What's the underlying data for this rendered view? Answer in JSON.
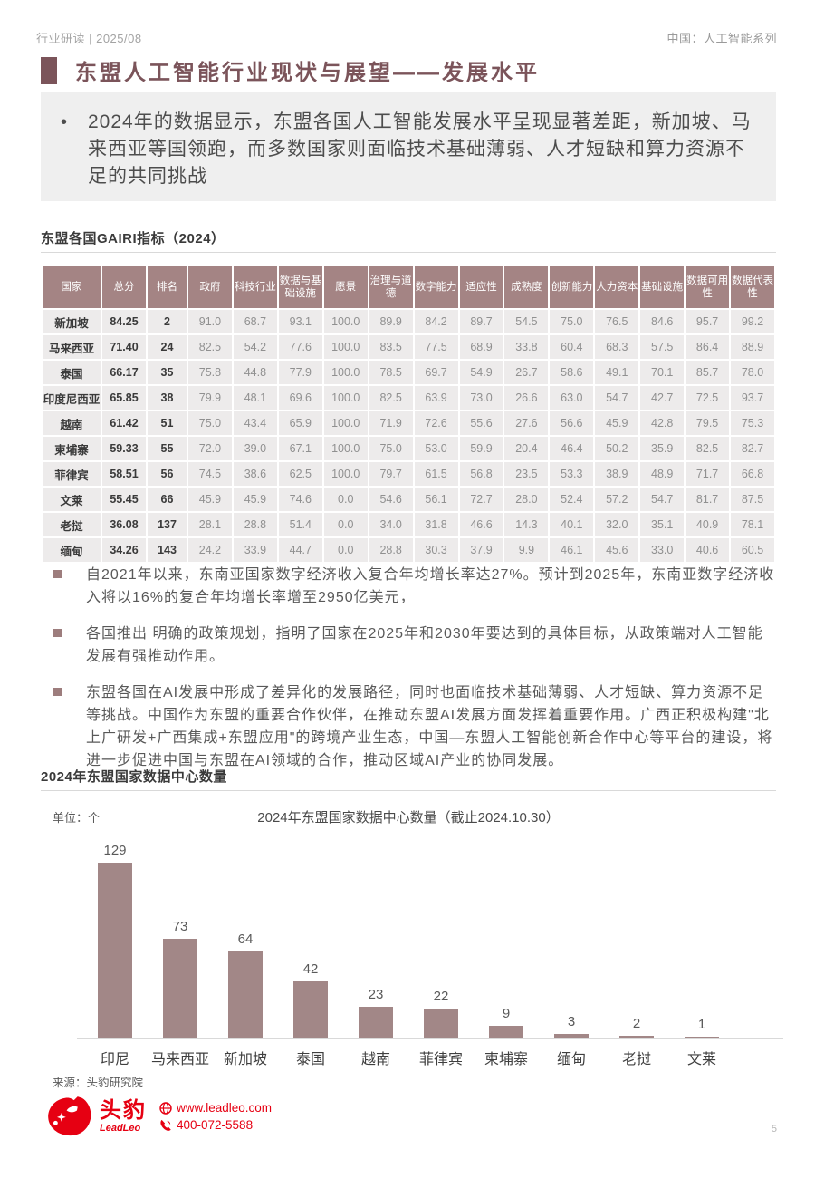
{
  "header": {
    "left": "行业研读 | 2025/08",
    "right": "中国：人工智能系列"
  },
  "title": "东盟人工智能行业现状与展望——发展水平",
  "intro": {
    "bullet": "•",
    "text": "2024年的数据显示，东盟各国人工智能发展水平呈现显著差距，新加坡、马来西亚等国领跑，而多数国家则面临技术基础薄弱、人才短缺和算力资源不足的共同挑战"
  },
  "table_section": {
    "title": "东盟各国GAIRI指标（2024）",
    "columns": [
      "国家",
      "总分",
      "排名",
      "政府",
      "科技行业",
      "数据与基础设施",
      "愿景",
      "治理与道德",
      "数字能力",
      "适应性",
      "成熟度",
      "创新能力",
      "人力资本",
      "基础设施",
      "数据可用性",
      "数据代表性"
    ],
    "rows": [
      [
        "新加坡",
        "84.25",
        "2",
        "91.0",
        "68.7",
        "93.1",
        "100.0",
        "89.9",
        "84.2",
        "89.7",
        "54.5",
        "75.0",
        "76.5",
        "84.6",
        "95.7",
        "99.2"
      ],
      [
        "马来西亚",
        "71.40",
        "24",
        "82.5",
        "54.2",
        "77.6",
        "100.0",
        "83.5",
        "77.5",
        "68.9",
        "33.8",
        "60.4",
        "68.3",
        "57.5",
        "86.4",
        "88.9"
      ],
      [
        "泰国",
        "66.17",
        "35",
        "75.8",
        "44.8",
        "77.9",
        "100.0",
        "78.5",
        "69.7",
        "54.9",
        "26.7",
        "58.6",
        "49.1",
        "70.1",
        "85.7",
        "78.0"
      ],
      [
        "印度尼西亚",
        "65.85",
        "38",
        "79.9",
        "48.1",
        "69.6",
        "100.0",
        "82.5",
        "63.9",
        "73.0",
        "26.6",
        "63.0",
        "54.7",
        "42.7",
        "72.5",
        "93.7"
      ],
      [
        "越南",
        "61.42",
        "51",
        "75.0",
        "43.4",
        "65.9",
        "100.0",
        "71.9",
        "72.6",
        "55.6",
        "27.6",
        "56.6",
        "45.9",
        "42.8",
        "79.5",
        "75.3"
      ],
      [
        "柬埔寨",
        "59.33",
        "55",
        "72.0",
        "39.0",
        "67.1",
        "100.0",
        "75.0",
        "53.0",
        "59.9",
        "20.4",
        "46.4",
        "50.2",
        "35.9",
        "82.5",
        "82.7"
      ],
      [
        "菲律宾",
        "58.51",
        "56",
        "74.5",
        "38.6",
        "62.5",
        "100.0",
        "79.7",
        "61.5",
        "56.8",
        "23.5",
        "53.3",
        "38.9",
        "48.9",
        "71.7",
        "66.8"
      ],
      [
        "文莱",
        "55.45",
        "66",
        "45.9",
        "45.9",
        "74.6",
        "0.0",
        "54.6",
        "56.1",
        "72.7",
        "28.0",
        "52.4",
        "57.2",
        "54.7",
        "81.7",
        "87.5"
      ],
      [
        "老挝",
        "36.08",
        "137",
        "28.1",
        "28.8",
        "51.4",
        "0.0",
        "34.0",
        "31.8",
        "46.6",
        "14.3",
        "40.1",
        "32.0",
        "35.1",
        "40.9",
        "78.1"
      ],
      [
        "缅甸",
        "34.26",
        "143",
        "24.2",
        "33.9",
        "44.7",
        "0.0",
        "28.8",
        "30.3",
        "37.9",
        "9.9",
        "46.1",
        "45.6",
        "33.0",
        "40.6",
        "60.5"
      ]
    ]
  },
  "bullets": [
    "自2021年以来，东南亚国家数字经济收入复合年均增长率达27%。预计到2025年，东南亚数字经济收入将以16%的复合年均增长率增至2950亿美元，",
    "各国推出 明确的政策规划，指明了国家在2025年和2030年要达到的具体目标，从政策端对人工智能发展有强推动作用。",
    "东盟各国在AI发展中形成了差异化的发展路径，同时也面临技术基础薄弱、人才短缺、算力资源不足等挑战。中国作为东盟的重要合作伙伴，在推动东盟AI发展方面发挥着重要作用。广西正积极构建\"北上广研发+广西集成+东盟应用\"的跨境产业生态，中国—东盟人工智能创新合作中心等平台的建设，将进一步促进中国与东盟在AI领域的合作，推动区域AI产业的协同发展。"
  ],
  "chart_section": {
    "heading": "2024年东盟国家数据中心数量",
    "unit_label": "单位：个",
    "source": "来源：头豹研究院"
  },
  "chart_data": {
    "type": "bar",
    "title": "2024年东盟国家数据中心数量（截止2024.10.30）",
    "categories": [
      "印尼",
      "马来西亚",
      "新加坡",
      "泰国",
      "越南",
      "菲律宾",
      "柬埔寨",
      "缅甸",
      "老挝",
      "文莱"
    ],
    "values": [
      129,
      73,
      64,
      42,
      23,
      22,
      9,
      3,
      2,
      1
    ],
    "ylabel": "单位：个",
    "ylim": [
      0,
      138
    ],
    "grid": false,
    "legend": "none",
    "bar_color": "#a28787",
    "data_labels": true
  },
  "footer": {
    "logo_cn": "头豹",
    "logo_en": "LeadLeo",
    "website": "www.leadleo.com",
    "phone": "400-072-5588",
    "page_number": "5"
  },
  "colors": {
    "accent_maroon": "#7b545a",
    "table_header_bg": "#a48484",
    "table_row_bg": "#edebeb",
    "bar": "#a28787",
    "brand_red": "#e60012",
    "intro_box_bg": "#efefef"
  }
}
